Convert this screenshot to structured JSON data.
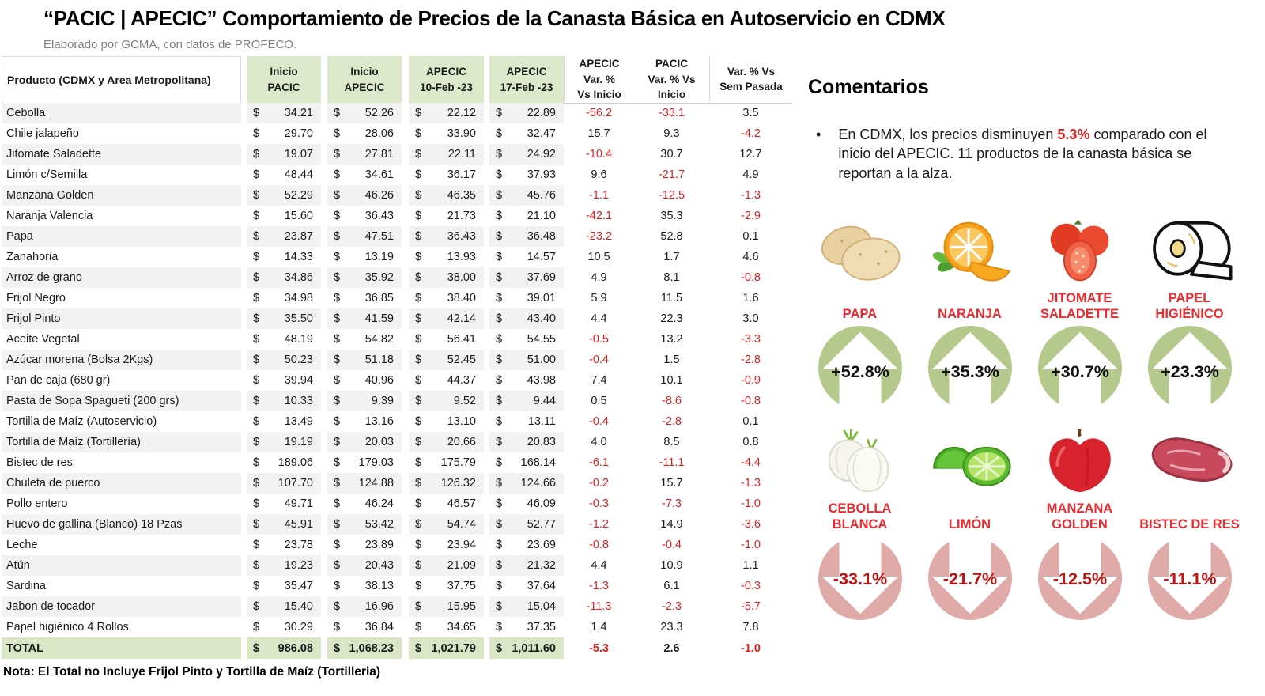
{
  "title": "“PACIC | APECIC” Comportamiento de Precios de la Canasta Básica en Autoservicio en CDMX",
  "subtitle": "Elaborado por GCMA, con datos de PROFECO.",
  "table": {
    "col_product": "Producto (CDMX y Area Metropolitana)",
    "col_headers": [
      "Inicio\nPACIC",
      "Inicio\nAPECIC",
      "APECIC\n10-Feb -23",
      "APECIC\n17-Feb -23"
    ],
    "pct_headers": [
      "APECIC\nVar. %\nVs  Inicio",
      "PACIC\nVar. % Vs\nInicio",
      "Var. % Vs\nSem Pasada"
    ],
    "currency": "$",
    "rows": [
      [
        "Cebolla",
        "34.21",
        "52.26",
        "22.12",
        "22.89",
        "-56.2",
        "-33.1",
        "3.5"
      ],
      [
        "Chile jalapeño",
        "29.70",
        "28.06",
        "33.90",
        "32.47",
        "15.7",
        "9.3",
        "-4.2"
      ],
      [
        "Jitomate Saladette",
        "19.07",
        "27.81",
        "22.11",
        "24.92",
        "-10.4",
        "30.7",
        "12.7"
      ],
      [
        "Limón c/Semilla",
        "48.44",
        "34.61",
        "36.17",
        "37.93",
        "9.6",
        "-21.7",
        "4.9"
      ],
      [
        "Manzana Golden",
        "52.29",
        "46.26",
        "46.35",
        "45.76",
        "-1.1",
        "-12.5",
        "-1.3"
      ],
      [
        "Naranja Valencia",
        "15.60",
        "36.43",
        "21.73",
        "21.10",
        "-42.1",
        "35.3",
        "-2.9"
      ],
      [
        "Papa",
        "23.87",
        "47.51",
        "36.43",
        "36.48",
        "-23.2",
        "52.8",
        "0.1"
      ],
      [
        "Zanahoria",
        "14.33",
        "13.19",
        "13.93",
        "14.57",
        "10.5",
        "1.7",
        "4.6"
      ],
      [
        "Arroz de grano",
        "34.86",
        "35.92",
        "38.00",
        "37.69",
        "4.9",
        "8.1",
        "-0.8"
      ],
      [
        "Frijol Negro",
        "34.98",
        "36.85",
        "38.40",
        "39.01",
        "5.9",
        "11.5",
        "1.6"
      ],
      [
        "Frijol Pinto",
        "35.50",
        "41.59",
        "42.14",
        "43.40",
        "4.4",
        "22.3",
        "3.0"
      ],
      [
        "Aceite Vegetal",
        "48.19",
        "54.82",
        "56.41",
        "54.55",
        "-0.5",
        "13.2",
        "-3.3"
      ],
      [
        "Azúcar morena (Bolsa 2Kgs)",
        "50.23",
        "51.18",
        "52.45",
        "51.00",
        "-0.4",
        "1.5",
        "-2.8"
      ],
      [
        "Pan de caja (680 gr)",
        "39.94",
        "40.96",
        "44.37",
        "43.98",
        "7.4",
        "10.1",
        "-0.9"
      ],
      [
        "Pasta de Sopa Spagueti (200 grs)",
        "10.33",
        "9.39",
        "9.52",
        "9.44",
        "0.5",
        "-8.6",
        "-0.8"
      ],
      [
        "Tortilla de Maíz (Autoservicio)",
        "13.49",
        "13.16",
        "13.10",
        "13.11",
        "-0.4",
        "-2.8",
        "0.1"
      ],
      [
        "Tortilla de Maíz (Tortillería)",
        "19.19",
        "20.03",
        "20.66",
        "20.83",
        "4.0",
        "8.5",
        "0.8"
      ],
      [
        "Bistec de res",
        "189.06",
        "179.03",
        "175.79",
        "168.14",
        "-6.1",
        "-11.1",
        "-4.4"
      ],
      [
        "Chuleta de puerco",
        "107.70",
        "124.88",
        "126.32",
        "124.66",
        "-0.2",
        "15.7",
        "-1.3"
      ],
      [
        "Pollo entero",
        "49.71",
        "46.24",
        "46.57",
        "46.09",
        "-0.3",
        "-7.3",
        "-1.0"
      ],
      [
        "Huevo de gallina (Blanco) 18 Pzas",
        "45.91",
        "53.42",
        "54.74",
        "52.77",
        "-1.2",
        "14.9",
        "-3.6"
      ],
      [
        "Leche",
        "23.78",
        "23.89",
        "23.94",
        "23.69",
        "-0.8",
        "-0.4",
        "-1.0"
      ],
      [
        "Atún",
        "19.23",
        "20.43",
        "21.09",
        "21.32",
        "4.4",
        "10.9",
        "1.1"
      ],
      [
        "Sardina",
        "35.47",
        "38.13",
        "37.75",
        "37.64",
        "-1.3",
        "6.1",
        "-0.3"
      ],
      [
        "Jabon de tocador",
        "15.40",
        "16.96",
        "15.95",
        "15.04",
        "-11.3",
        "-2.3",
        "-5.7"
      ],
      [
        "Papel higiénico 4 Rollos",
        "30.29",
        "36.84",
        "34.65",
        "37.35",
        "1.4",
        "23.3",
        "7.8"
      ]
    ],
    "total_label": "TOTAL",
    "total": [
      "986.08",
      "1,068.23",
      "1,021.79",
      "1,011.60",
      "-5.3",
      "2.6",
      "-1.0"
    ],
    "note": "Nota: El Total no Incluye Frijol Pinto y Tortilla de Maíz (Tortilleria)"
  },
  "comments": {
    "heading": "Comentarios",
    "bullet_marker": "•",
    "bullet": {
      "pre": "En CDMX, los precios disminuyen ",
      "highlight": "5.3%",
      "post": " comparado con el inicio del APECIC. 11 productos de la canasta básica se reportan a la alza."
    }
  },
  "cards": {
    "up": [
      {
        "label": "PAPA",
        "value": "+52.8%",
        "icon": "potato-icon"
      },
      {
        "label": "NARANJA",
        "value": "+35.3%",
        "icon": "orange-icon"
      },
      {
        "label": "JITOMATE SALADETTE",
        "value": "+30.7%",
        "icon": "tomato-icon"
      },
      {
        "label": "PAPEL HIGIÉNICO",
        "value": "+23.3%",
        "icon": "toilet-paper-icon"
      }
    ],
    "down": [
      {
        "label": "CEBOLLA BLANCA",
        "value": "-33.1%",
        "icon": "onion-icon"
      },
      {
        "label": "LIMÓN",
        "value": "-21.7%",
        "icon": "lime-icon"
      },
      {
        "label": "MANZANA GOLDEN",
        "value": "-12.5%",
        "icon": "apple-icon"
      },
      {
        "label": "BISTEC DE RES",
        "value": "-11.1%",
        "icon": "steak-icon"
      }
    ]
  },
  "colors": {
    "header_green": "#dbe8c9",
    "total_green": "#d9e7c6",
    "stripe_gray": "#f2f2f2",
    "negative_red": "#e02020",
    "card_label_red": "#ea2a2e",
    "up_circle_green": "#b5c98c",
    "down_circle_pink": "#dfaaa8",
    "down_value_red": "#c01414"
  }
}
